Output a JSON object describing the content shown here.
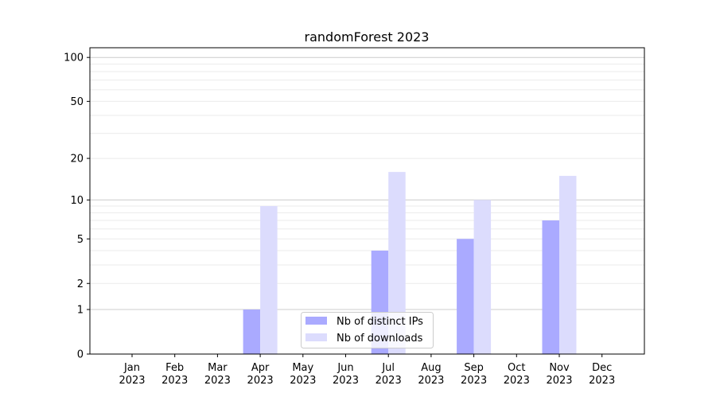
{
  "chart_data": {
    "type": "bar",
    "title": "randomForest 2023",
    "xlabel": "",
    "ylabel": "",
    "yscale": "log(1+y)",
    "ylim": [
      0,
      110
    ],
    "yticks": [
      0,
      1,
      2,
      5,
      10,
      20,
      50,
      100
    ],
    "grid": true,
    "legend_position": "lower-center",
    "categories": [
      "Jan\n2023",
      "Feb\n2023",
      "Mar\n2023",
      "Apr\n2023",
      "May\n2023",
      "Jun\n2023",
      "Jul\n2023",
      "Aug\n2023",
      "Sep\n2023",
      "Oct\n2023",
      "Nov\n2023",
      "Dec\n2023"
    ],
    "series": [
      {
        "name": "Nb of distinct IPs",
        "color": "#aaaaff",
        "values": [
          0,
          0,
          0,
          1,
          0,
          0,
          4,
          0,
          5,
          0,
          7,
          0
        ]
      },
      {
        "name": "Nb of downloads",
        "color": "#dcdcfd",
        "values": [
          0,
          0,
          0,
          9,
          0,
          0,
          16,
          0,
          10,
          0,
          15,
          0
        ]
      }
    ]
  }
}
